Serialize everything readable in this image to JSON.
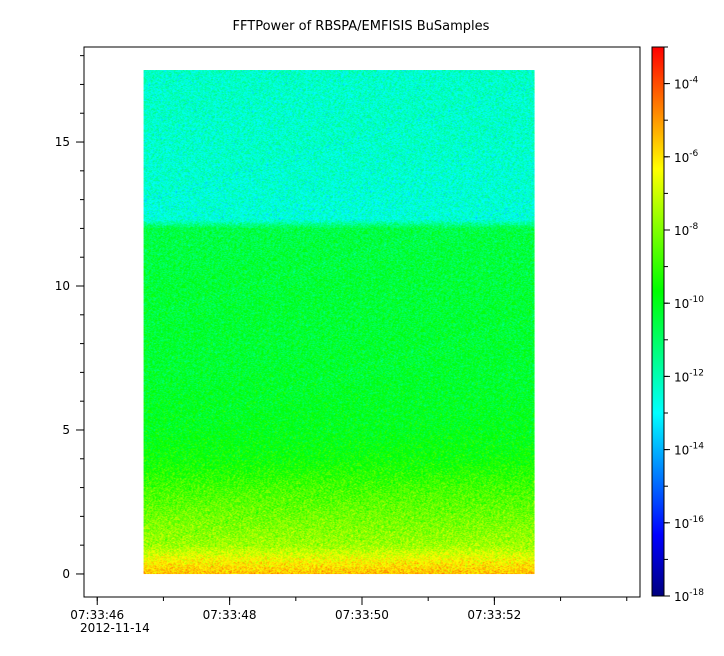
{
  "chart_data": {
    "type": "heatmap",
    "title": "FFTPower of RBSPA/EMFISIS  BuSamples",
    "xlabel": "",
    "ylabel": "",
    "x_axis": {
      "kind": "time",
      "range": [
        "07:33:45.8",
        "07:33:54.2"
      ],
      "ticks": [
        "07:33:46",
        "07:33:48",
        "07:33:50",
        "07:33:52"
      ],
      "minor_tick_seconds": 1,
      "date_label": "2012-11-14"
    },
    "y_axis": {
      "range": [
        -0.8,
        18.3
      ],
      "ticks": [
        0,
        5,
        10,
        15
      ]
    },
    "z_axis": {
      "scale": "log",
      "range": [
        1e-18,
        0.001
      ],
      "ticks": [
        {
          "base": "10",
          "exp": "-4"
        },
        {
          "base": "10",
          "exp": "-6"
        },
        {
          "base": "10",
          "exp": "-8"
        },
        {
          "base": "10",
          "exp": "-10"
        },
        {
          "base": "10",
          "exp": "-12"
        },
        {
          "base": "10",
          "exp": "-14"
        },
        {
          "base": "10",
          "exp": "-16"
        },
        {
          "base": "10",
          "exp": "-18"
        }
      ],
      "colormap": [
        "#00007f",
        "#0000ff",
        "#007fff",
        "#00ffff",
        "#00ff7f",
        "#00ff00",
        "#7fff00",
        "#ffff00",
        "#ff7f00",
        "#ff0000"
      ]
    },
    "data_extent": {
      "x": [
        "07:33:46.7",
        "07:33:52.6"
      ],
      "y": [
        0,
        17.5
      ]
    },
    "spectrum_profile": [
      {
        "y": 0.0,
        "log_power": -5.5
      },
      {
        "y": 0.4,
        "log_power": -6.2
      },
      {
        "y": 1.0,
        "log_power": -7.6
      },
      {
        "y": 2.0,
        "log_power": -8.2
      },
      {
        "y": 3.0,
        "log_power": -8.8
      },
      {
        "y": 4.0,
        "log_power": -9.6
      },
      {
        "y": 5.0,
        "log_power": -10.0
      },
      {
        "y": 7.0,
        "log_power": -10.3
      },
      {
        "y": 10.0,
        "log_power": -10.4
      },
      {
        "y": 12.0,
        "log_power": -10.6
      },
      {
        "y": 12.3,
        "log_power": -12.5
      },
      {
        "y": 15.0,
        "log_power": -12.3
      },
      {
        "y": 17.5,
        "log_power": -12.3
      }
    ]
  }
}
